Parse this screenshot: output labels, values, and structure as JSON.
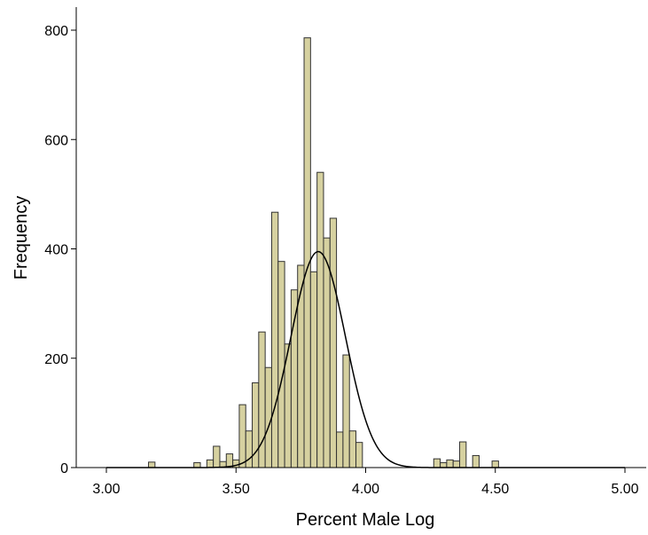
{
  "chart_data": {
    "type": "bar",
    "subtype": "histogram-with-normal-curve",
    "xlabel": "Percent Male Log",
    "ylabel": "Frequency",
    "xlim": [
      2.9,
      5.05
    ],
    "ylim": [
      0,
      850
    ],
    "x_ticks": [
      {
        "value": 3.0,
        "label": "3.00"
      },
      {
        "value": 3.5,
        "label": "3.50"
      },
      {
        "value": 4.0,
        "label": "4.00"
      },
      {
        "value": 4.5,
        "label": "4.50"
      },
      {
        "value": 5.0,
        "label": "5.00"
      }
    ],
    "y_ticks": [
      {
        "value": 0,
        "label": "0"
      },
      {
        "value": 200,
        "label": "200"
      },
      {
        "value": 400,
        "label": "400"
      },
      {
        "value": 600,
        "label": "600"
      },
      {
        "value": 800,
        "label": "800"
      }
    ],
    "bin_width": 0.025,
    "bins": [
      {
        "x": 3.175,
        "count": 10
      },
      {
        "x": 3.35,
        "count": 9
      },
      {
        "x": 3.4,
        "count": 14
      },
      {
        "x": 3.425,
        "count": 39
      },
      {
        "x": 3.45,
        "count": 11
      },
      {
        "x": 3.475,
        "count": 25
      },
      {
        "x": 3.5,
        "count": 14
      },
      {
        "x": 3.525,
        "count": 115
      },
      {
        "x": 3.55,
        "count": 67
      },
      {
        "x": 3.575,
        "count": 155
      },
      {
        "x": 3.6,
        "count": 248
      },
      {
        "x": 3.625,
        "count": 183
      },
      {
        "x": 3.65,
        "count": 467
      },
      {
        "x": 3.675,
        "count": 377
      },
      {
        "x": 3.7,
        "count": 226
      },
      {
        "x": 3.725,
        "count": 325
      },
      {
        "x": 3.75,
        "count": 370
      },
      {
        "x": 3.775,
        "count": 786
      },
      {
        "x": 3.8,
        "count": 358
      },
      {
        "x": 3.825,
        "count": 540
      },
      {
        "x": 3.85,
        "count": 420
      },
      {
        "x": 3.875,
        "count": 456
      },
      {
        "x": 3.9,
        "count": 65
      },
      {
        "x": 3.925,
        "count": 206
      },
      {
        "x": 3.95,
        "count": 67
      },
      {
        "x": 3.975,
        "count": 46
      },
      {
        "x": 4.275,
        "count": 16
      },
      {
        "x": 4.3,
        "count": 9
      },
      {
        "x": 4.325,
        "count": 14
      },
      {
        "x": 4.35,
        "count": 12
      },
      {
        "x": 4.375,
        "count": 47
      },
      {
        "x": 4.425,
        "count": 22
      },
      {
        "x": 4.5,
        "count": 12
      }
    ],
    "normal_curve": {
      "mean": 3.817,
      "sd": 0.105,
      "peak": 395
    },
    "colors": {
      "bar_fill": "#d6d1a0",
      "bar_stroke": "#333333",
      "curve": "#000000",
      "axis": "#000000"
    },
    "grid": false,
    "legend": "none"
  }
}
